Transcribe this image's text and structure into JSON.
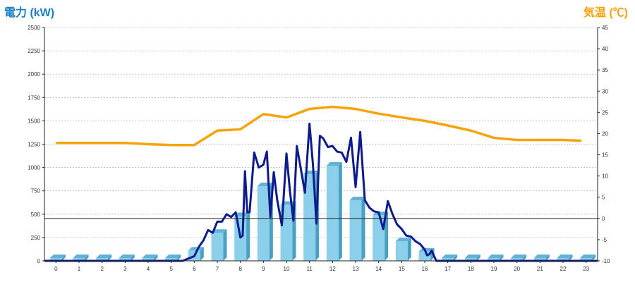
{
  "chart_data": {
    "type": "bar+line",
    "left_axis_label": "電力 (kW)",
    "right_axis_label": "気温 (℃)",
    "left_ticks": [
      "0",
      "250",
      "500",
      "750",
      "1000",
      "1250",
      "1500",
      "1750",
      "2000",
      "2250",
      "2500"
    ],
    "right_ticks": [
      "-10",
      "-5",
      "0",
      "5",
      "10",
      "15",
      "20",
      "25",
      "30",
      "35",
      "40",
      "45"
    ],
    "x_ticks": [
      "0",
      "1",
      "2",
      "3",
      "4",
      "5",
      "6",
      "7",
      "8",
      "9",
      "10",
      "11",
      "12",
      "13",
      "14",
      "15",
      "16",
      "17",
      "18",
      "19",
      "20",
      "21",
      "22",
      "23"
    ],
    "ylim_left": [
      0,
      2500
    ],
    "ylim_right": [
      -10,
      45
    ],
    "grid": true,
    "bars": {
      "name": "hourly power",
      "values": [
        0,
        0,
        0,
        0,
        0,
        0,
        110,
        300,
        480,
        800,
        600,
        930,
        1020,
        650,
        490,
        210,
        100,
        0,
        0,
        0,
        0,
        0,
        0,
        0
      ]
    },
    "temperature": {
      "x": [
        0,
        1,
        2,
        3,
        4,
        5,
        6,
        7,
        8,
        9,
        10,
        11,
        12,
        13,
        14,
        15,
        16,
        17,
        18,
        19,
        20,
        21,
        22,
        22.8
      ],
      "values": [
        17.8,
        17.8,
        17.8,
        17.8,
        17.5,
        17.3,
        17.3,
        20.7,
        21,
        24.6,
        23.8,
        25.8,
        26.3,
        25.8,
        24.7,
        23.8,
        23,
        21.9,
        20.7,
        19,
        18.5,
        18.5,
        18.5,
        18.3
      ]
    },
    "power_line": {
      "x": [
        5.5,
        6,
        6.2,
        6.4,
        6.6,
        6.8,
        7,
        7.2,
        7.4,
        7.6,
        7.8,
        8,
        8.1,
        8.2,
        8.3,
        8.4,
        8.6,
        8.8,
        9,
        9.15,
        9.3,
        9.45,
        9.6,
        9.8,
        10,
        10.15,
        10.3,
        10.45,
        10.6,
        10.8,
        11,
        11.15,
        11.3,
        11.45,
        11.6,
        11.8,
        12,
        12.2,
        12.4,
        12.6,
        12.8,
        13,
        13.2,
        13.4,
        13.6,
        13.8,
        14,
        14.2,
        14.4,
        14.6,
        14.8,
        15,
        15.2,
        15.4,
        15.6,
        15.8,
        16,
        16.1,
        16.2,
        16.3,
        16.5
      ],
      "values": [
        0,
        50,
        150,
        220,
        330,
        300,
        420,
        420,
        500,
        470,
        520,
        250,
        270,
        960,
        520,
        520,
        1160,
        1000,
        1030,
        1170,
        470,
        950,
        650,
        380,
        1150,
        750,
        430,
        1230,
        1020,
        730,
        1470,
        1030,
        400,
        1340,
        1310,
        1220,
        1230,
        1170,
        1160,
        1060,
        1320,
        790,
        1380,
        650,
        570,
        530,
        520,
        340,
        640,
        500,
        390,
        340,
        270,
        260,
        210,
        180,
        120,
        60,
        70,
        110,
        0
      ]
    }
  }
}
